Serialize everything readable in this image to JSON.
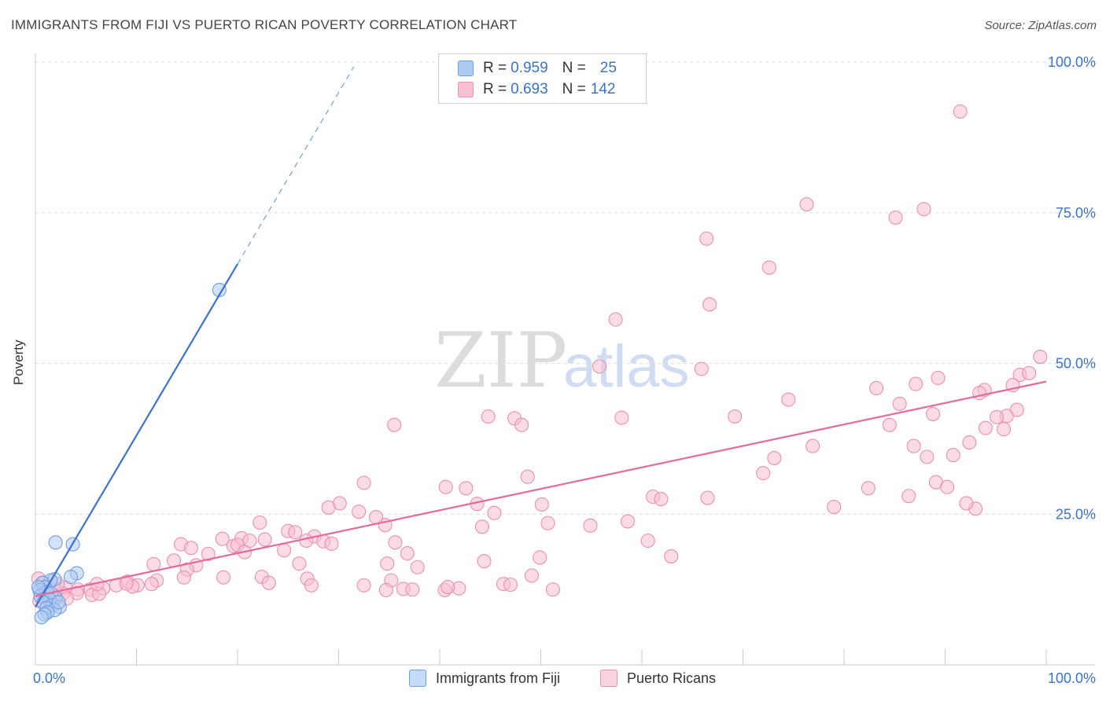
{
  "header": {
    "title": "IMMIGRANTS FROM FIJI VS PUERTO RICAN POVERTY CORRELATION CHART",
    "source": "Source: ZipAtlas.com"
  },
  "watermark": {
    "zip": "ZIP",
    "atlas": "atlas"
  },
  "legend": {
    "rows": [
      {
        "r_label": "R =",
        "r_value": "0.959",
        "n_label": "N =",
        "n_value": "25"
      },
      {
        "r_label": "R =",
        "r_value": "0.693",
        "n_label": "N =",
        "n_value": "142"
      }
    ]
  },
  "colors": {
    "fiji_fill": "#aecbf3",
    "fiji_stroke": "#6f9ee0",
    "fiji_line": "#3a73c9",
    "pr_fill": "#f8bfd2",
    "pr_stroke": "#ea8fb0",
    "pr_line": "#e46b98",
    "grid": "#dddddd",
    "tick_label": "#3a73c9"
  },
  "chart_data": {
    "type": "scatter",
    "title": "IMMIGRANTS FROM FIJI VS PUERTO RICAN POVERTY CORRELATION CHART",
    "xlabel": "",
    "ylabel": "Poverty",
    "xlim": [
      0,
      100
    ],
    "ylim": [
      0,
      100
    ],
    "x_tick_labels": [
      "0.0%",
      "100.0%"
    ],
    "y_ticks": [
      25,
      50,
      75,
      100
    ],
    "y_tick_labels": [
      "25.0%",
      "50.0%",
      "75.0%",
      "100.0%"
    ],
    "grid": true,
    "series": [
      {
        "name": "Immigrants from Fiji",
        "R": 0.959,
        "N": 25,
        "trend": {
          "x0": 0,
          "y0": 9.6,
          "x1": 20,
          "y1": 66.5,
          "dash_to_x": 31.5
        },
        "points": [
          [
            18.2,
            62.2
          ],
          [
            2.0,
            20.3
          ],
          [
            3.7,
            20.0
          ],
          [
            4.1,
            15.2
          ],
          [
            3.5,
            14.6
          ],
          [
            1.9,
            14.2
          ],
          [
            1.5,
            14.0
          ],
          [
            0.7,
            13.6
          ],
          [
            0.9,
            12.9
          ],
          [
            0.4,
            12.4
          ],
          [
            1.1,
            12.1
          ],
          [
            1.6,
            11.8
          ],
          [
            0.5,
            11.4
          ],
          [
            2.0,
            11.1
          ],
          [
            1.4,
            10.8
          ],
          [
            0.8,
            10.3
          ],
          [
            1.7,
            9.9
          ],
          [
            2.4,
            9.6
          ],
          [
            1.1,
            9.4
          ],
          [
            1.9,
            9.1
          ],
          [
            1.2,
            8.7
          ],
          [
            0.9,
            8.4
          ],
          [
            0.6,
            7.9
          ],
          [
            2.3,
            10.4
          ],
          [
            0.3,
            12.9
          ]
        ]
      },
      {
        "name": "Puerto Ricans",
        "R": 0.693,
        "N": 142,
        "trend": {
          "x0": 0,
          "y0": 11.4,
          "x1": 100,
          "y1": 47.0
        },
        "points": [
          [
            91.5,
            91.8
          ],
          [
            76.3,
            76.4
          ],
          [
            87.9,
            75.6
          ],
          [
            85.1,
            74.2
          ],
          [
            66.4,
            70.7
          ],
          [
            72.6,
            65.9
          ],
          [
            66.7,
            59.8
          ],
          [
            57.4,
            57.3
          ],
          [
            55.8,
            49.5
          ],
          [
            65.9,
            49.1
          ],
          [
            99.4,
            51.1
          ],
          [
            97.4,
            48.1
          ],
          [
            98.3,
            48.4
          ],
          [
            96.7,
            46.4
          ],
          [
            93.9,
            45.6
          ],
          [
            89.3,
            47.6
          ],
          [
            87.1,
            46.6
          ],
          [
            83.2,
            45.9
          ],
          [
            93.4,
            45.1
          ],
          [
            74.5,
            44.0
          ],
          [
            85.5,
            43.3
          ],
          [
            97.1,
            42.3
          ],
          [
            96.1,
            41.3
          ],
          [
            95.1,
            41.1
          ],
          [
            88.8,
            41.6
          ],
          [
            84.5,
            39.8
          ],
          [
            69.2,
            41.2
          ],
          [
            58.0,
            41.0
          ],
          [
            47.4,
            40.9
          ],
          [
            48.1,
            39.8
          ],
          [
            44.8,
            41.2
          ],
          [
            35.5,
            39.8
          ],
          [
            95.8,
            39.1
          ],
          [
            94.0,
            39.3
          ],
          [
            92.4,
            36.9
          ],
          [
            90.8,
            34.8
          ],
          [
            86.9,
            36.3
          ],
          [
            76.9,
            36.3
          ],
          [
            73.1,
            34.3
          ],
          [
            72.0,
            31.8
          ],
          [
            89.1,
            30.3
          ],
          [
            88.2,
            34.5
          ],
          [
            48.7,
            31.2
          ],
          [
            32.5,
            30.2
          ],
          [
            32.0,
            25.4
          ],
          [
            42.6,
            29.3
          ],
          [
            40.6,
            29.5
          ],
          [
            43.7,
            26.7
          ],
          [
            45.4,
            25.2
          ],
          [
            50.1,
            26.6
          ],
          [
            66.5,
            27.7
          ],
          [
            61.1,
            27.9
          ],
          [
            61.9,
            27.5
          ],
          [
            86.4,
            28.0
          ],
          [
            82.4,
            29.3
          ],
          [
            90.2,
            29.5
          ],
          [
            79.0,
            26.2
          ],
          [
            93.0,
            25.9
          ],
          [
            92.1,
            26.8
          ],
          [
            30.1,
            26.8
          ],
          [
            29.0,
            26.1
          ],
          [
            34.6,
            23.2
          ],
          [
            33.7,
            24.5
          ],
          [
            44.2,
            22.9
          ],
          [
            50.7,
            23.5
          ],
          [
            22.2,
            23.6
          ],
          [
            25.0,
            22.2
          ],
          [
            27.6,
            21.3
          ],
          [
            22.7,
            20.8
          ],
          [
            26.8,
            20.6
          ],
          [
            28.5,
            20.5
          ],
          [
            25.7,
            22.0
          ],
          [
            35.6,
            20.3
          ],
          [
            29.3,
            20.1
          ],
          [
            24.6,
            19.0
          ],
          [
            19.6,
            19.7
          ],
          [
            20.4,
            21.0
          ],
          [
            21.2,
            20.6
          ],
          [
            20.0,
            19.9
          ],
          [
            18.5,
            20.9
          ],
          [
            14.4,
            20.0
          ],
          [
            15.4,
            19.4
          ],
          [
            17.1,
            18.4
          ],
          [
            20.7,
            18.7
          ],
          [
            36.8,
            18.5
          ],
          [
            13.7,
            17.3
          ],
          [
            11.7,
            16.7
          ],
          [
            15.9,
            16.5
          ],
          [
            26.1,
            16.8
          ],
          [
            34.8,
            16.8
          ],
          [
            37.8,
            16.2
          ],
          [
            15.0,
            15.8
          ],
          [
            14.7,
            14.5
          ],
          [
            18.6,
            14.5
          ],
          [
            22.4,
            14.6
          ],
          [
            23.1,
            13.6
          ],
          [
            26.9,
            14.3
          ],
          [
            35.2,
            14.0
          ],
          [
            27.3,
            13.2
          ],
          [
            32.5,
            13.2
          ],
          [
            34.7,
            12.4
          ],
          [
            36.4,
            12.6
          ],
          [
            40.5,
            12.4
          ],
          [
            41.9,
            12.7
          ],
          [
            12.0,
            14.0
          ],
          [
            9.1,
            13.8
          ],
          [
            10.1,
            13.2
          ],
          [
            11.5,
            13.4
          ],
          [
            9.6,
            13.0
          ],
          [
            8.0,
            13.2
          ],
          [
            6.7,
            12.7
          ],
          [
            5.4,
            12.5
          ],
          [
            4.2,
            12.5
          ],
          [
            3.0,
            12.8
          ],
          [
            1.9,
            12.6
          ],
          [
            2.7,
            11.8
          ],
          [
            4.1,
            11.9
          ],
          [
            5.6,
            11.6
          ],
          [
            6.3,
            11.8
          ],
          [
            1.0,
            11.4
          ],
          [
            1.8,
            10.8
          ],
          [
            3.1,
            11.0
          ],
          [
            0.6,
            11.9
          ],
          [
            0.4,
            10.6
          ],
          [
            0.3,
            14.3
          ],
          [
            0.8,
            13.6
          ],
          [
            1.3,
            12.9
          ],
          [
            2.2,
            13.4
          ],
          [
            6.1,
            13.4
          ],
          [
            9.0,
            13.5
          ],
          [
            44.4,
            17.2
          ],
          [
            49.1,
            14.8
          ],
          [
            49.9,
            17.8
          ],
          [
            51.2,
            12.5
          ],
          [
            60.6,
            20.6
          ],
          [
            58.6,
            23.8
          ],
          [
            54.9,
            23.1
          ],
          [
            62.9,
            18.0
          ],
          [
            46.3,
            13.4
          ],
          [
            37.3,
            12.5
          ],
          [
            40.8,
            12.9
          ],
          [
            47.0,
            13.3
          ]
        ]
      }
    ]
  },
  "bottom_legend": [
    {
      "label": "Immigrants from Fiji"
    },
    {
      "label": "Puerto Ricans"
    }
  ]
}
